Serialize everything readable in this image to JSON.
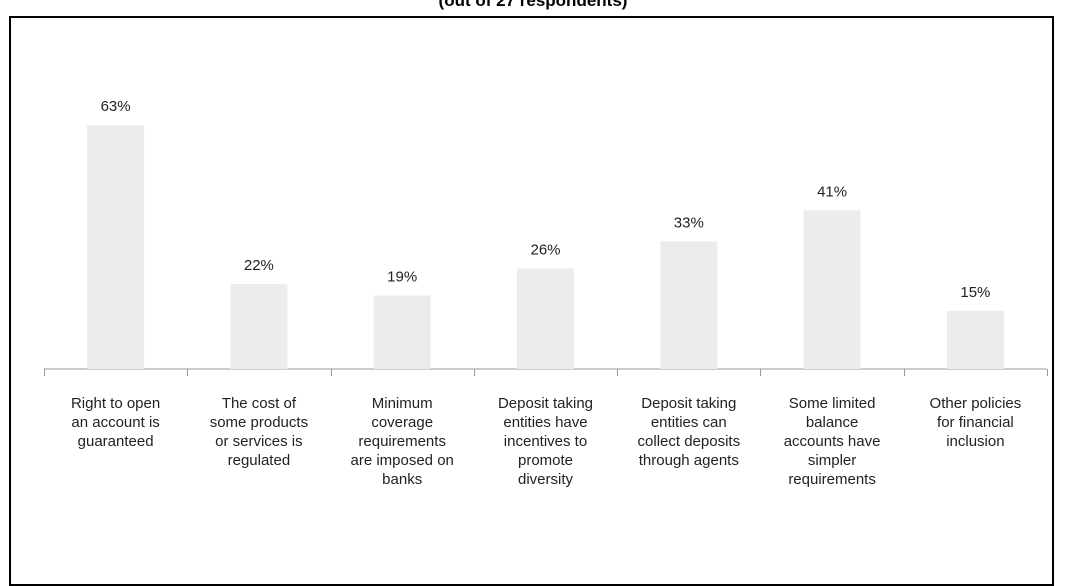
{
  "chart_data": {
    "type": "bar",
    "title": "(out of 27 respondents)",
    "categories": [
      "Right to open\nan account is\nguaranteed",
      "The cost of\nsome products\nor services is\nregulated",
      "Minimum\ncoverage\nrequirements\nare imposed on\nbanks",
      "Deposit taking\nentities have\nincentives to\npromote\ndiversity",
      "Deposit taking\nentities can\ncollect deposits\nthrough agents",
      "Some limited\nbalance\naccounts have\nsimpler\nrequirements",
      "Other policies\nfor financial\ninclusion"
    ],
    "values": [
      63,
      22,
      19,
      26,
      33,
      41,
      15
    ],
    "value_labels": [
      "63%",
      "22%",
      "19%",
      "26%",
      "33%",
      "41%",
      "15%"
    ],
    "unit": "%",
    "xlabel": "",
    "ylabel": "",
    "grid": false,
    "legend": "none",
    "colors": {
      "bar": "#ececec",
      "axis": "#999999",
      "label": "#222222"
    }
  }
}
